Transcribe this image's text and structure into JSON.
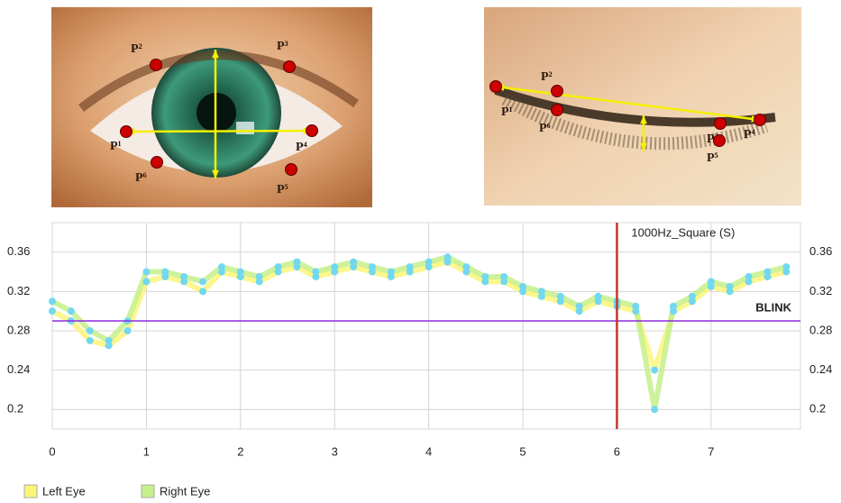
{
  "images": [
    {
      "labels": [
        "P¹",
        "P²",
        "P³",
        "P⁴",
        "P⁵",
        "P⁶"
      ]
    },
    {
      "labels": [
        "P¹",
        "P²",
        "P³",
        "P⁴",
        "P⁵",
        "P⁶"
      ]
    }
  ],
  "chart_data": {
    "type": "line",
    "x": [
      0,
      0.2,
      0.4,
      0.6,
      0.8,
      1,
      1.2,
      1.4,
      1.6,
      1.8,
      2,
      2.2,
      2.4,
      2.6,
      2.8,
      3,
      3.2,
      3.4,
      3.6,
      3.8,
      4,
      4.2,
      4.4,
      4.6,
      4.8,
      5,
      5.2,
      5.4,
      5.6,
      5.8,
      6,
      6.2,
      6.4,
      6.6,
      6.8,
      7,
      7.2,
      7.4,
      7.6,
      7.8
    ],
    "series": [
      {
        "name": "Left Eye",
        "color": "#fbf57a",
        "values": [
          0.3,
          0.29,
          0.27,
          0.265,
          0.28,
          0.33,
          0.335,
          0.33,
          0.32,
          0.34,
          0.335,
          0.33,
          0.34,
          0.345,
          0.335,
          0.34,
          0.345,
          0.34,
          0.335,
          0.34,
          0.345,
          0.35,
          0.34,
          0.33,
          0.33,
          0.32,
          0.315,
          0.31,
          0.3,
          0.31,
          0.305,
          0.3,
          0.24,
          0.3,
          0.31,
          0.325,
          0.32,
          0.33,
          0.335,
          0.34
        ]
      },
      {
        "name": "Right Eye",
        "color": "#c6f08a",
        "values": [
          0.31,
          0.3,
          0.28,
          0.27,
          0.29,
          0.34,
          0.34,
          0.335,
          0.33,
          0.345,
          0.34,
          0.335,
          0.345,
          0.35,
          0.34,
          0.345,
          0.35,
          0.345,
          0.34,
          0.345,
          0.35,
          0.355,
          0.345,
          0.335,
          0.335,
          0.325,
          0.32,
          0.315,
          0.305,
          0.315,
          0.31,
          0.305,
          0.2,
          0.305,
          0.315,
          0.33,
          0.325,
          0.335,
          0.34,
          0.345
        ]
      }
    ],
    "marker_color": "#72d8f0",
    "xlim": [
      0,
      7.95
    ],
    "xticks": [
      0,
      1,
      2,
      3,
      4,
      5,
      6,
      7
    ],
    "ylim": [
      0.18,
      0.39
    ],
    "yticks": [
      0.2,
      0.24,
      0.28,
      0.32,
      0.36
    ],
    "grid": true,
    "threshold": {
      "value": 0.29,
      "label": "BLINK",
      "color": "#8a2be2"
    },
    "event": {
      "x": 6,
      "label": "1000Hz_Square (S)",
      "color": "#c0392b"
    }
  }
}
